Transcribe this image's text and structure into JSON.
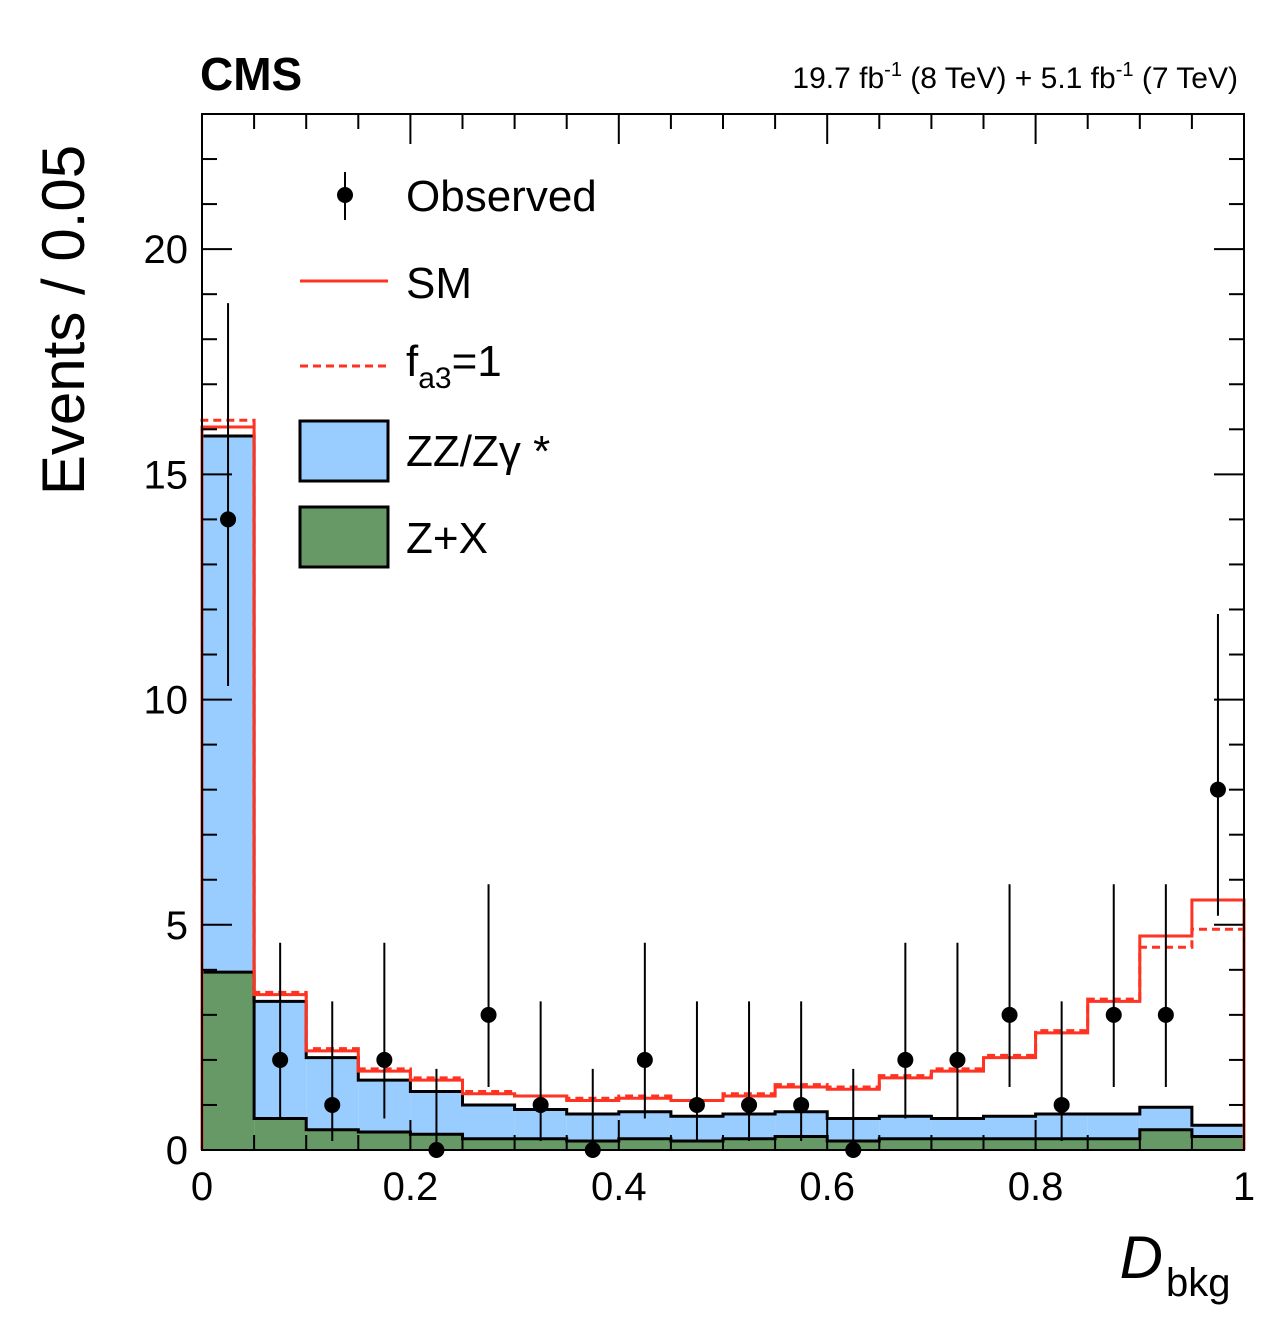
{
  "header": {
    "experiment": "CMS",
    "lumi_8": "19.7 fb",
    "lumi_8_sup": "-1",
    "lumi_8_energy": " (8 TeV) + ",
    "lumi_7": "5.1 fb",
    "lumi_7_sup": "-1",
    "lumi_7_energy": " (7 TeV)"
  },
  "axes": {
    "ylabel": "Events / 0.05",
    "xlabel_main": "D",
    "xlabel_sub": "bkg"
  },
  "legend": {
    "observed": "Observed",
    "sm": "SM",
    "fa3_prefix": "f",
    "fa3_sub": "a3",
    "fa3_suffix": "=1",
    "zz": "ZZ/Zγ *",
    "zx": "Z+X"
  },
  "colors": {
    "zz_fill": "#99ccff",
    "zx_fill": "#669966",
    "signal": "#ff3322",
    "data": "#000000"
  },
  "chart_data": {
    "type": "histogram",
    "bin_width": 0.05,
    "xlim": [
      0,
      1
    ],
    "ylim": [
      0,
      23
    ],
    "x_ticks": [
      0,
      0.2,
      0.4,
      0.6,
      0.8,
      1
    ],
    "x_tick_labels": [
      "0",
      "0.2",
      "0.4",
      "0.6",
      "0.8",
      "1"
    ],
    "y_ticks": [
      0,
      5,
      10,
      15,
      20
    ],
    "y_tick_labels": [
      "0",
      "5",
      "10",
      "15",
      "20"
    ],
    "bin_centers": [
      0.025,
      0.075,
      0.125,
      0.175,
      0.225,
      0.275,
      0.325,
      0.375,
      0.425,
      0.475,
      0.525,
      0.575,
      0.625,
      0.675,
      0.725,
      0.775,
      0.825,
      0.875,
      0.925,
      0.975
    ],
    "series": [
      {
        "name": "Z+X",
        "kind": "stacked-fill",
        "values": [
          3.95,
          0.7,
          0.45,
          0.4,
          0.35,
          0.25,
          0.25,
          0.2,
          0.25,
          0.2,
          0.25,
          0.3,
          0.2,
          0.25,
          0.25,
          0.25,
          0.25,
          0.25,
          0.45,
          0.3
        ]
      },
      {
        "name": "ZZ/Zγ *",
        "kind": "stacked-fill",
        "values": [
          11.9,
          2.6,
          1.6,
          1.15,
          0.95,
          0.75,
          0.65,
          0.6,
          0.6,
          0.55,
          0.55,
          0.55,
          0.5,
          0.5,
          0.45,
          0.5,
          0.55,
          0.55,
          0.5,
          0.25
        ]
      },
      {
        "name": "SM",
        "kind": "line",
        "values": [
          16.05,
          3.45,
          2.2,
          1.75,
          1.55,
          1.25,
          1.2,
          1.1,
          1.15,
          1.1,
          1.2,
          1.4,
          1.35,
          1.6,
          1.75,
          2.05,
          2.6,
          3.3,
          4.75,
          5.55
        ]
      },
      {
        "name": "f_a3=1",
        "kind": "dashed-line",
        "values": [
          16.2,
          3.5,
          2.25,
          1.8,
          1.6,
          1.3,
          1.2,
          1.15,
          1.2,
          1.1,
          1.25,
          1.45,
          1.4,
          1.65,
          1.8,
          2.1,
          2.65,
          3.35,
          4.5,
          4.9
        ]
      },
      {
        "name": "Observed",
        "kind": "points",
        "values": [
          14,
          2,
          1,
          2,
          0,
          3,
          1,
          0,
          2,
          1,
          1,
          1,
          0,
          2,
          2,
          3,
          1,
          3,
          3,
          8
        ],
        "err_low": [
          3.7,
          1.3,
          0.8,
          1.3,
          0,
          1.6,
          0.8,
          0,
          1.3,
          0.8,
          0.8,
          0.8,
          0,
          1.3,
          1.3,
          1.6,
          0.8,
          1.6,
          1.6,
          2.8
        ],
        "err_high": [
          4.8,
          2.6,
          2.3,
          2.6,
          1.8,
          2.9,
          2.3,
          1.8,
          2.6,
          2.3,
          2.3,
          2.3,
          1.8,
          2.6,
          2.6,
          2.9,
          2.3,
          2.9,
          2.9,
          3.9
        ]
      }
    ]
  }
}
